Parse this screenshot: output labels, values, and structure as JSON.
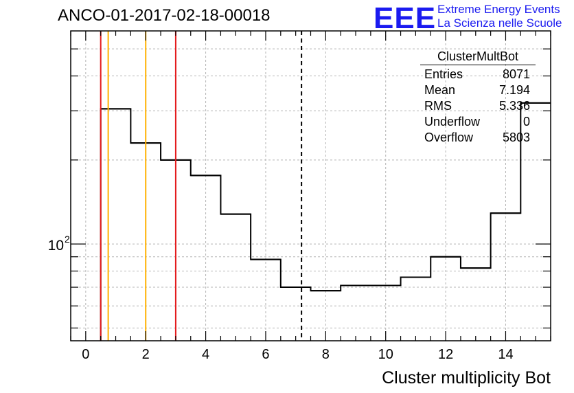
{
  "header": {
    "run_title": "ANCO-01-2017-02-18-00018",
    "logo_text": "EEE",
    "logo_line1": "Extreme Energy Events",
    "logo_line2": "La Scienza nelle Scuole"
  },
  "stats_box": {
    "title": "ClusterMultBot",
    "rows": [
      {
        "label": "Entries",
        "value": "8071"
      },
      {
        "label": "Mean",
        "value": "7.194"
      },
      {
        "label": "RMS",
        "value": "5.336"
      },
      {
        "label": "Underflow",
        "value": "0"
      },
      {
        "label": "Overflow",
        "value": "5803"
      }
    ]
  },
  "colors": {
    "red_line": "#e41a1c",
    "orange_line": "#ffb000",
    "logo_blue": "#1b1bf0",
    "grid": "#b4b4b4"
  },
  "chart_data": {
    "type": "histogram",
    "title": "",
    "xlabel": "Cluster multiplicity Bot",
    "ylabel": "",
    "xlim": [
      -0.5,
      15.5
    ],
    "ylim": [
      45,
      580
    ],
    "yscale": "log",
    "grid": true,
    "bin_edges": [
      0.5,
      1.5,
      2.5,
      3.5,
      4.5,
      5.5,
      6.5,
      7.5,
      8.5,
      9.5,
      10.5,
      11.5,
      12.5,
      13.5,
      14.5,
      15.5
    ],
    "values": [
      305,
      230,
      200,
      176,
      128,
      88,
      70,
      68,
      71,
      71,
      76,
      90,
      82,
      129,
      320
    ],
    "xticks": [
      0,
      2,
      4,
      6,
      8,
      10,
      12,
      14
    ],
    "yticks": [
      {
        "value": 100,
        "base": "10",
        "exp": "2"
      }
    ],
    "vlines": [
      {
        "x": 0.5,
        "color": "red",
        "style": "solid"
      },
      {
        "x": 3.0,
        "color": "red",
        "style": "solid"
      },
      {
        "x": 0.75,
        "color": "orange",
        "style": "solid"
      },
      {
        "x": 2.0,
        "color": "orange",
        "style": "solid"
      },
      {
        "x": 7.194,
        "color": "black",
        "style": "dashed"
      }
    ]
  }
}
